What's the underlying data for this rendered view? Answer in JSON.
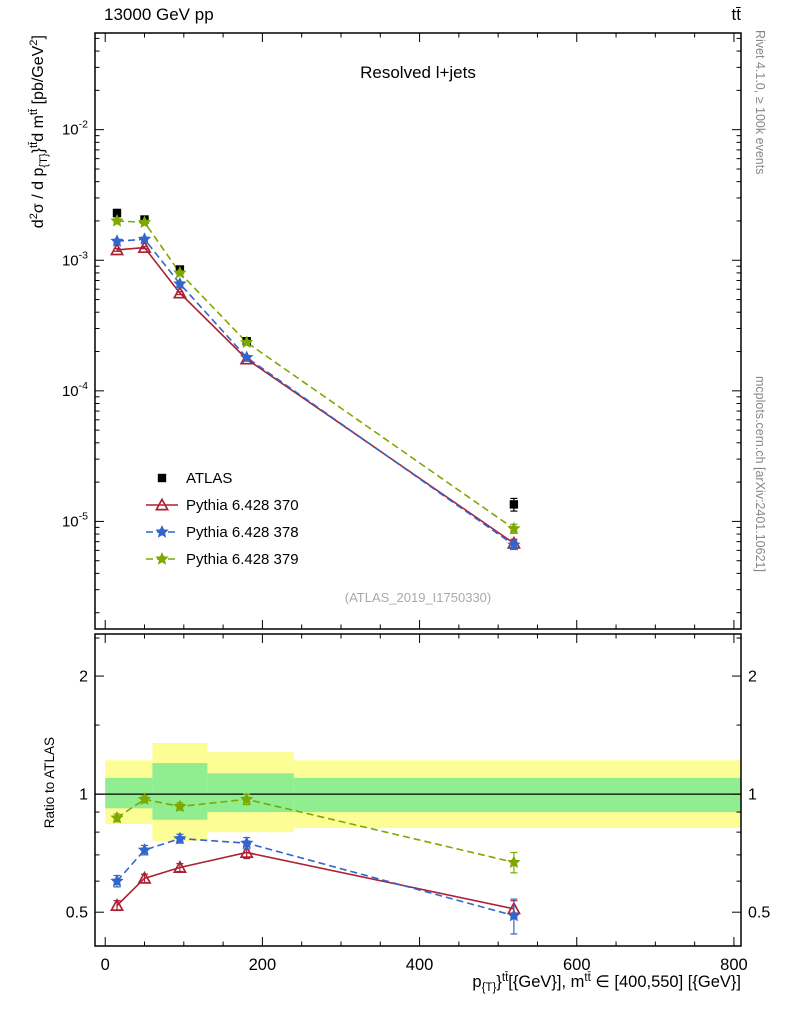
{
  "texts": {
    "collision": "13000 GeV pp",
    "process": "tt̄",
    "watermark": "(ATLAS_2019_I1750330)",
    "rivet_note": "Rivet 4.1.0, ≥ 100k events",
    "mcplots_note": "mcplots.cern.ch [arXiv:2401.10621]"
  },
  "ylabel_parts": [
    {
      "t": "d"
    },
    {
      "t": "2",
      "sup": true
    },
    {
      "t": "σ / d p"
    },
    {
      "t": "{T}",
      "sub": true
    },
    {
      "t": "}"
    },
    {
      "t": "tt̄",
      "sup": true
    },
    {
      "t": "d m"
    },
    {
      "t": "tt̄",
      "sup": true
    },
    {
      "t": " [pb/GeV"
    },
    {
      "t": "2",
      "sup": true
    },
    {
      "t": "]"
    }
  ],
  "xlabel_parts": [
    {
      "t": "p"
    },
    {
      "t": "{T}",
      "sub": true
    },
    {
      "t": "}"
    },
    {
      "t": "tt̄",
      "sup": true
    },
    {
      "t": "[{GeV}], m"
    },
    {
      "t": "tt̄",
      "sup": true
    },
    {
      "t": " ∈ [400,550] [{GeV}]"
    }
  ],
  "chart_data": [
    {
      "type": "line",
      "title": "Resolved l+jets",
      "xlabel": "p_T^{tt} [GeV], m^{tt} ∈ [400,550] [GeV]",
      "ylabel": "d2σ / d p_T^{tt} d m^{tt} [pb/GeV2]",
      "xscale": "linear",
      "yscale": "log",
      "xlim": [
        -13,
        809
      ],
      "ylim": [
        1.5e-06,
        0.055
      ],
      "xticks": [
        0,
        200,
        400,
        600,
        800
      ],
      "yticks_exponents": [
        -5,
        -4,
        -3,
        -2
      ],
      "x": [
        15,
        50,
        95,
        180,
        520
      ],
      "series": [
        {
          "name": "ATLAS",
          "color": "#000000",
          "marker": "square",
          "line": "none",
          "values": [
            0.0023,
            0.00205,
            0.00085,
            0.00024,
            1.35e-05
          ],
          "yerr": [
            0.00015,
            0.0001,
            4e-05,
            1.2e-05,
            1.5e-06
          ]
        },
        {
          "name": "Pythia 6.428 370",
          "color": "#aa2233",
          "marker": "triangle-open",
          "line": "solid",
          "values": [
            0.0012,
            0.00125,
            0.00056,
            0.000175,
            6.8e-06
          ],
          "yerr": [
            3e-05,
            2.5e-05,
            1.4e-05,
            6e-06,
            5e-07
          ]
        },
        {
          "name": "Pythia 6.428 378",
          "color": "#3366cc",
          "marker": "star",
          "line": "dashed",
          "values": [
            0.0014,
            0.00145,
            0.00066,
            0.00018,
            6.6e-06
          ],
          "yerr": [
            3e-05,
            2.5e-05,
            1.4e-05,
            6e-06,
            5e-07
          ]
        },
        {
          "name": "Pythia 6.428 379",
          "color": "#7da800",
          "marker": "star",
          "line": "dashed",
          "values": [
            0.002,
            0.00195,
            0.0008,
            0.000235,
            8.8e-06
          ],
          "yerr": [
            4e-05,
            3e-05,
            1.6e-05,
            7e-06,
            7e-07
          ]
        }
      ]
    },
    {
      "type": "ratio",
      "ylabel": "Ratio to ATLAS",
      "yscale": "log",
      "ylim": [
        0.41,
        2.56
      ],
      "yticks": [
        0.5,
        1,
        2
      ],
      "yticks_minor": [
        0.6,
        0.7,
        0.8,
        0.9,
        1.5,
        2.5
      ],
      "reference_line": 1,
      "band_colors": {
        "outer": "#fdfd96",
        "inner": "#90ee90"
      },
      "bands": [
        {
          "x0": 0,
          "x1": 60,
          "outer": [
            0.84,
            1.22
          ],
          "inner": [
            0.92,
            1.1
          ]
        },
        {
          "x0": 60,
          "x1": 130,
          "outer": [
            0.76,
            1.35
          ],
          "inner": [
            0.86,
            1.2
          ]
        },
        {
          "x0": 130,
          "x1": 240,
          "outer": [
            0.8,
            1.28
          ],
          "inner": [
            0.9,
            1.13
          ]
        },
        {
          "x0": 240,
          "x1": 809,
          "outer": [
            0.82,
            1.22
          ],
          "inner": [
            0.9,
            1.1
          ]
        }
      ],
      "x": [
        15,
        50,
        95,
        180,
        520
      ],
      "series": [
        {
          "name": "Pythia 6.428 370",
          "color": "#aa2233",
          "marker": "triangle-open",
          "line": "solid",
          "values": [
            0.52,
            0.61,
            0.65,
            0.71,
            0.51
          ],
          "yerr": [
            0.015,
            0.015,
            0.015,
            0.025,
            0.025
          ]
        },
        {
          "name": "Pythia 6.428 378",
          "color": "#3366cc",
          "marker": "star",
          "line": "dashed",
          "values": [
            0.6,
            0.72,
            0.77,
            0.75,
            0.49
          ],
          "yerr": [
            0.02,
            0.02,
            0.02,
            0.025,
            0.05
          ]
        },
        {
          "name": "Pythia 6.428 379",
          "color": "#7da800",
          "marker": "star",
          "line": "dashed",
          "values": [
            0.87,
            0.97,
            0.93,
            0.97,
            0.67
          ],
          "yerr": [
            0.02,
            0.02,
            0.02,
            0.03,
            0.04
          ]
        }
      ]
    }
  ]
}
